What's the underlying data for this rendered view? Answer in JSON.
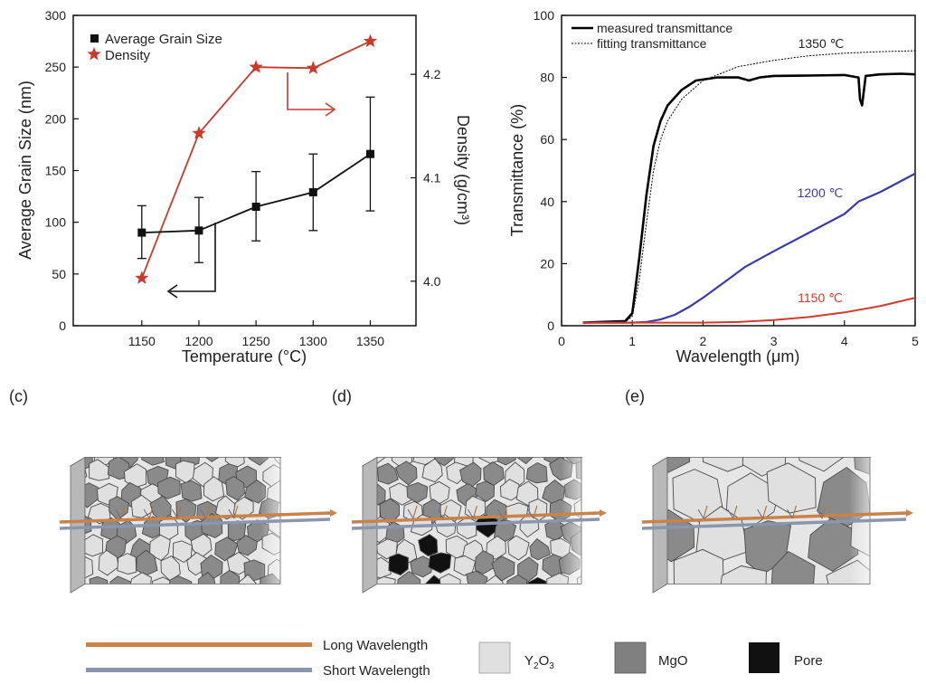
{
  "panels": {
    "c": "(c)",
    "d": "(d)",
    "e": "(e)"
  },
  "colors": {
    "grain_line": "#111111",
    "density_line": "#c83a2c",
    "measured_1350": "#000000",
    "fit_line": "#000000",
    "curve_1200": "#3a3ab0",
    "curve_1150": "#d23a2a",
    "long_wave": "#c8824a",
    "short_wave": "#8a95b0",
    "y2o3": "#e0e0e0",
    "mgo": "#808080",
    "pore": "#111111"
  },
  "chart_data": [
    {
      "type": "line",
      "x": [
        1150,
        1200,
        1250,
        1300,
        1350
      ],
      "xlabel": "Temperature (°C)",
      "xlim": [
        1090,
        1390
      ],
      "xticks": [
        1150,
        1200,
        1250,
        1300,
        1350
      ],
      "ylabel": "Average Grain Size (nm)",
      "ylim": [
        0,
        300
      ],
      "yticks": [
        0,
        50,
        100,
        150,
        200,
        250,
        300
      ],
      "y2label": "Density (g/cm³)",
      "y2lim": [
        3.957,
        4.257
      ],
      "y2ticks": [
        4.0,
        4.1,
        4.2
      ],
      "y2ticklabels": [
        "4.0",
        "4.1",
        "4.2"
      ],
      "legend_position": "top-left",
      "series": [
        {
          "name": "Average Grain Size",
          "axis": "left",
          "marker": "square",
          "values": [
            90,
            92,
            115,
            129,
            166
          ],
          "err_low": [
            65,
            61,
            82,
            92,
            111
          ],
          "err_high": [
            116,
            124,
            149,
            166,
            221
          ]
        },
        {
          "name": "Density",
          "axis": "right",
          "marker": "star",
          "values": [
            4.003,
            4.143,
            4.207,
            4.206,
            4.232
          ]
        }
      ]
    },
    {
      "type": "line",
      "xlabel": "Wavelength (μm)",
      "xlim": [
        0,
        5
      ],
      "xticks": [
        0,
        1,
        2,
        3,
        4,
        5
      ],
      "ylabel": "Transmittance (%)",
      "ylim": [
        0,
        100
      ],
      "yticks": [
        0,
        20,
        40,
        60,
        80,
        100
      ],
      "legend_position": "top-left",
      "legend": [
        "measured transmittance",
        "fitting transmittance"
      ],
      "series": [
        {
          "name": "1350 ℃",
          "style": "solid",
          "x": [
            0.3,
            0.9,
            1.0,
            1.1,
            1.2,
            1.3,
            1.4,
            1.5,
            1.7,
            1.9,
            2.2,
            2.5,
            2.65,
            2.8,
            3.0,
            3.5,
            4.0,
            4.2,
            4.22,
            4.25,
            4.3,
            4.5,
            4.8,
            5.0
          ],
          "y": [
            1,
            1.5,
            4,
            22,
            42,
            58,
            66,
            71,
            76,
            79,
            80,
            80,
            79,
            80,
            80.5,
            80.6,
            80.8,
            80,
            73,
            71,
            80.5,
            81,
            81.2,
            81
          ]
        },
        {
          "name": "1350 ℃ fit",
          "style": "dashed",
          "x": [
            0.3,
            0.9,
            1.0,
            1.1,
            1.2,
            1.3,
            1.4,
            1.5,
            1.7,
            2.0,
            2.5,
            3.0,
            3.5,
            4.0,
            4.5,
            5.0
          ],
          "y": [
            1,
            1.2,
            3,
            15,
            33,
            50,
            60,
            66,
            73,
            79,
            83.5,
            85.5,
            87,
            87.8,
            88.3,
            88.6
          ]
        },
        {
          "name": "1200 ℃",
          "style": "solid",
          "x": [
            0.3,
            1.0,
            1.2,
            1.4,
            1.6,
            1.8,
            2.0,
            2.3,
            2.6,
            3.0,
            3.5,
            4.0,
            4.2,
            4.5,
            5.0
          ],
          "y": [
            1,
            1,
            1.2,
            2,
            3.5,
            6,
            9,
            14,
            19,
            24,
            30,
            36,
            40,
            43,
            49
          ]
        },
        {
          "name": "1150 ℃",
          "style": "solid",
          "x": [
            0.3,
            1.0,
            2.0,
            2.5,
            3.0,
            3.5,
            4.0,
            4.5,
            5.0
          ],
          "y": [
            1,
            1,
            1,
            1.2,
            1.8,
            2.8,
            4.3,
            6.3,
            9
          ]
        }
      ],
      "labels": [
        "1350 ℃",
        "1200 ℃",
        "1150 ℃"
      ]
    }
  ],
  "legend_bottom": {
    "long_wavelength": "Long Wavelength",
    "short_wavelength": "Short Wavelength",
    "y2o3_prefix": "Y",
    "y2o3_sub1": "2",
    "y2o3_mid": "O",
    "y2o3_sub2": "3",
    "mgo": "MgO",
    "pore": "Pore"
  }
}
